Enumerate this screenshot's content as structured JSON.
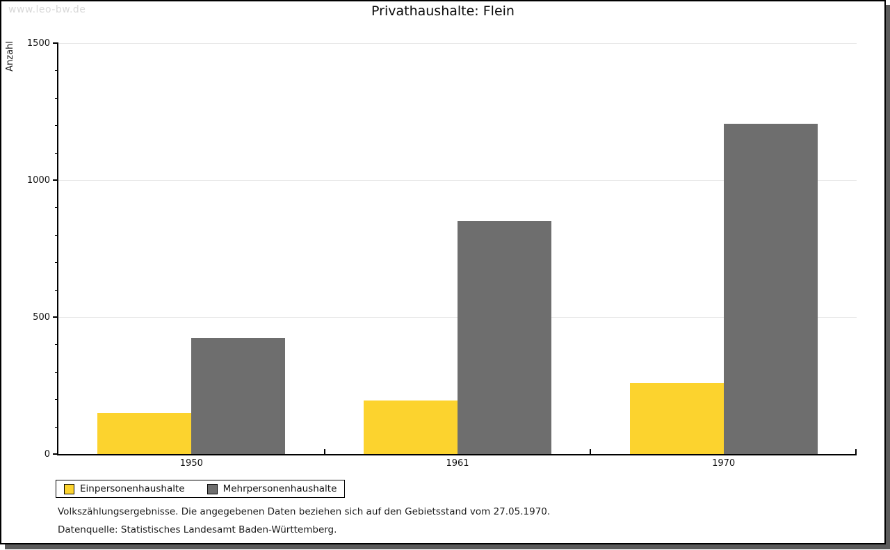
{
  "watermark": "www.leo-bw.de",
  "chart_data": {
    "type": "bar",
    "title": "Privathaushalte: Flein",
    "ylabel": "Anzahl",
    "xlabel": "",
    "categories": [
      "1950",
      "1961",
      "1970"
    ],
    "series": [
      {
        "name": "Einpersonenhaushalte",
        "color": "#FCD32E",
        "values": [
          150,
          195,
          260
        ]
      },
      {
        "name": "Mehrpersonenhaushalte",
        "color": "#6E6E6E",
        "values": [
          425,
          850,
          1205
        ]
      }
    ],
    "ylim": [
      0,
      1500
    ],
    "yticks": [
      0,
      500,
      1000,
      1500
    ],
    "minor_tick_step": 100,
    "grid": "horizontal-major",
    "legend_position": "bottom-left"
  },
  "footnotes": [
    "Volkszählungsergebnisse. Die angegebenen Daten beziehen sich auf den Gebietsstand vom 27.05.1970.",
    "Datenquelle: Statistisches Landesamt Baden-Württemberg."
  ]
}
